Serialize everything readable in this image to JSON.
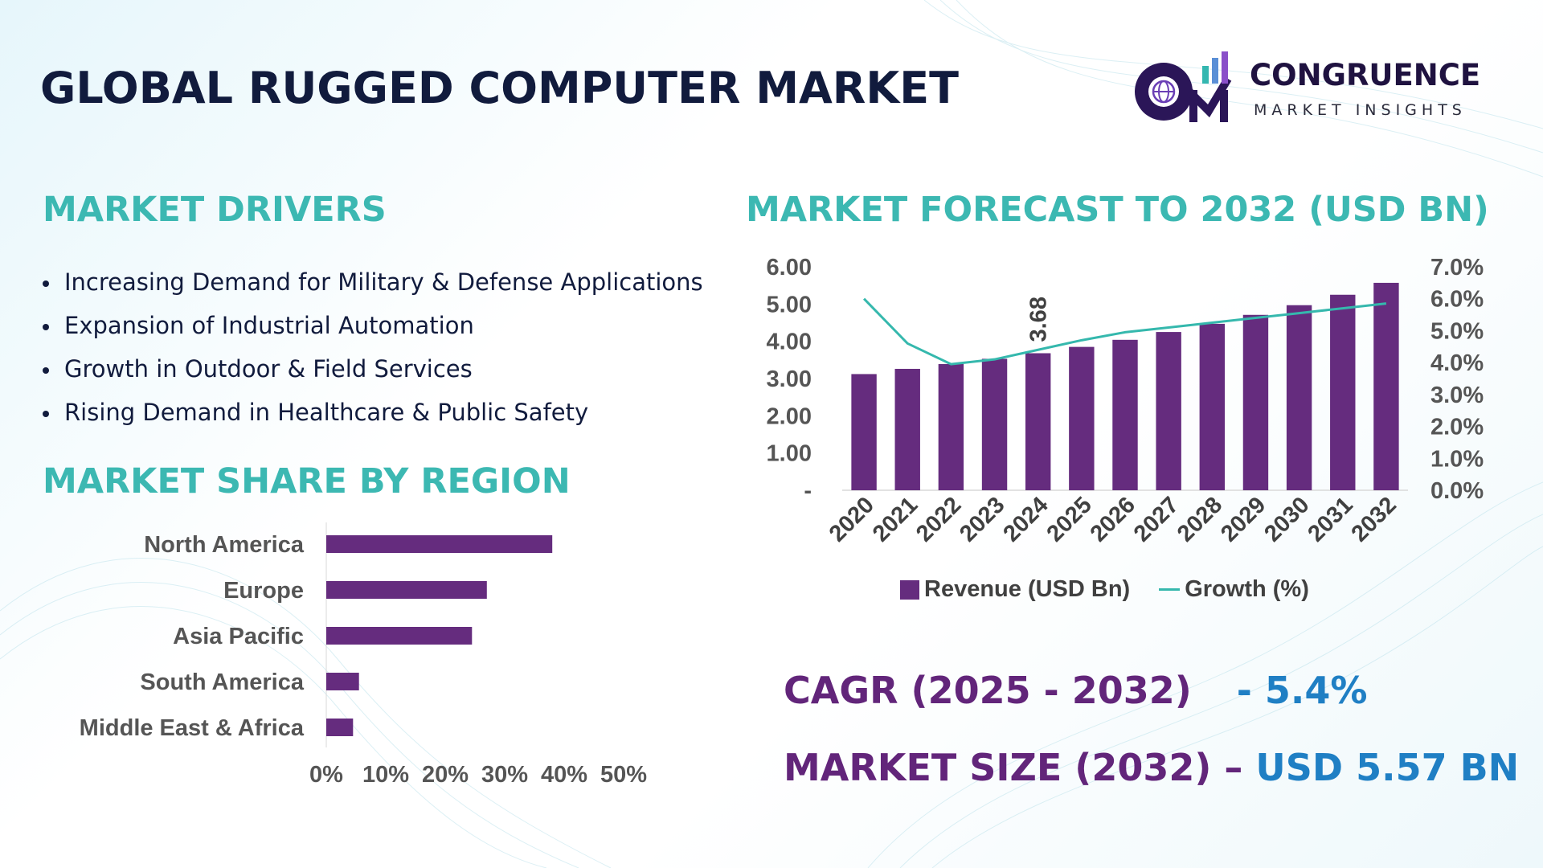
{
  "header": {
    "title": "GLOBAL RUGGED COMPUTER MARKET",
    "logo_name": "CONGRUENCE",
    "logo_sub": "MARKET INSIGHTS",
    "logo_letters": "CM"
  },
  "drivers": {
    "heading": "MARKET DRIVERS",
    "items": [
      "Increasing Demand for Military & Defense Applications",
      "Expansion of Industrial Automation",
      "Growth in Outdoor & Field Services",
      "Rising Demand in Healthcare & Public Safety"
    ]
  },
  "region": {
    "heading": "MARKET SHARE BY REGION"
  },
  "forecast": {
    "heading": "MARKET FORECAST TO 2032 (USD BN)"
  },
  "stats": {
    "cagr_label": "CAGR (2025 - 2032)",
    "cagr_value": "- 5.4%",
    "size_label": "MARKET SIZE (2032) –",
    "size_value": "USD 5.57 BN"
  },
  "colors": {
    "bar": "#652c7e",
    "line": "#35b8ad",
    "heading": "#3cb8b2",
    "title": "#111b3d",
    "stat_label": "#62257a",
    "stat_value": "#1f7fc4"
  },
  "chart_data": [
    {
      "type": "bar",
      "orientation": "horizontal",
      "title": "MARKET SHARE BY REGION",
      "categories": [
        "North America",
        "Europe",
        "Asia Pacific",
        "South America",
        "Middle East & Africa"
      ],
      "values": [
        38,
        27,
        24.5,
        5.5,
        4.5
      ],
      "xlim": [
        0,
        50
      ],
      "xticks": [
        "0%",
        "10%",
        "20%",
        "30%",
        "40%",
        "50%"
      ],
      "grid": false
    },
    {
      "type": "bar",
      "title": "MARKET FORECAST TO 2032 (USD BN)",
      "categories": [
        "2020",
        "2021",
        "2022",
        "2023",
        "2024",
        "2025",
        "2026",
        "2027",
        "2028",
        "2029",
        "2030",
        "2031",
        "2032"
      ],
      "series": [
        {
          "name": "Revenue (USD Bn)",
          "type": "bar",
          "axis": "left",
          "values": [
            3.12,
            3.26,
            3.39,
            3.53,
            3.68,
            3.85,
            4.04,
            4.25,
            4.47,
            4.71,
            4.97,
            5.25,
            5.57
          ]
        },
        {
          "name": "Growth (%)",
          "type": "line",
          "axis": "right",
          "values": [
            6.0,
            4.6,
            3.95,
            4.1,
            4.4,
            4.7,
            4.95,
            5.1,
            5.25,
            5.4,
            5.55,
            5.7,
            5.85
          ]
        }
      ],
      "ylim_left": [
        0,
        6
      ],
      "yticks_left": [
        "-",
        "1.00",
        "2.00",
        "3.00",
        "4.00",
        "5.00",
        "6.00"
      ],
      "ylim_right": [
        0,
        7
      ],
      "yticks_right": [
        "0.0%",
        "1.0%",
        "2.0%",
        "3.0%",
        "4.0%",
        "5.0%",
        "6.0%",
        "7.0%"
      ],
      "data_labels": [
        {
          "category": "2024",
          "text": "3.68"
        }
      ],
      "legend_position": "bottom",
      "grid": false
    }
  ]
}
